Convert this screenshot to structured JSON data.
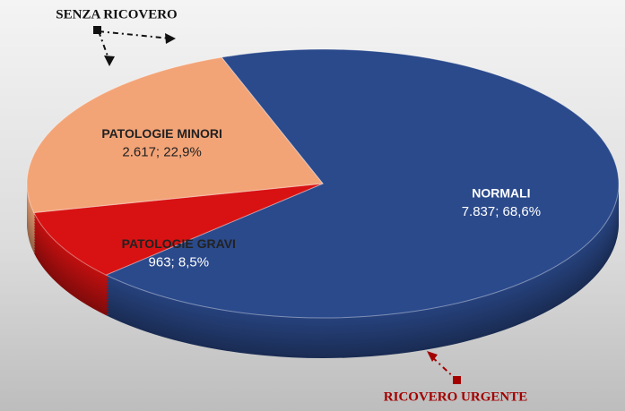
{
  "chart_data": {
    "type": "pie",
    "categories": [
      "NORMALI",
      "PATOLOGIE GRAVI",
      "PATOLOGIE MINORI"
    ],
    "values": [
      7837,
      963,
      2617
    ],
    "value_labels": [
      "7.837; 68,6%",
      "963; 8,5%",
      "2.617; 22,9%"
    ],
    "colors": [
      "#2b4a8c",
      "#d81212",
      "#f3a477"
    ],
    "annotations": [
      "SENZA RICOVERO",
      "RICOVERO URGENTE"
    ]
  }
}
